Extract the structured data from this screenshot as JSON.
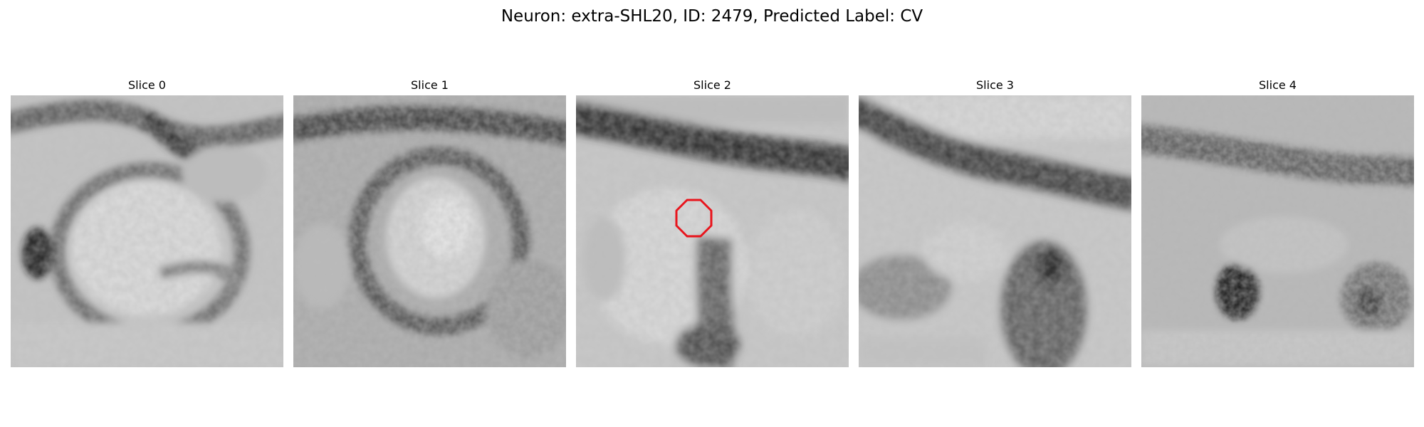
{
  "figure": {
    "title": "Neuron: extra-SHL20, ID: 2479, Predicted Label: CV"
  },
  "panels": [
    {
      "title": "Slice 0",
      "image": "em-slice-0",
      "has_roi": false
    },
    {
      "title": "Slice 1",
      "image": "em-slice-1",
      "has_roi": false
    },
    {
      "title": "Slice 2",
      "image": "em-slice-2",
      "has_roi": true
    },
    {
      "title": "Slice 3",
      "image": "em-slice-3",
      "has_roi": false
    },
    {
      "title": "Slice 4",
      "image": "em-slice-4",
      "has_roi": false
    }
  ],
  "colors": {
    "roi_outline": "#e8141c",
    "background": "#ffffff"
  }
}
